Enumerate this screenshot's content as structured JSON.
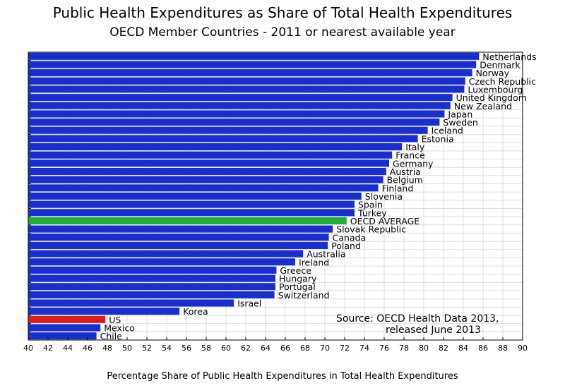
{
  "chart_data": {
    "type": "bar",
    "orientation": "horizontal",
    "title": "Public Health Expenditures as Share of Total Health Expenditures",
    "subtitle": "OECD Member Countries - 2011 or nearest available year",
    "xlabel": "Percentage Share of Public Health Expenditures in Total Health Expenditures",
    "xlim": [
      40,
      90
    ],
    "xticks": [
      40,
      42,
      44,
      46,
      48,
      50,
      52,
      54,
      56,
      58,
      60,
      62,
      64,
      66,
      68,
      70,
      72,
      74,
      76,
      78,
      80,
      82,
      84,
      86,
      88,
      90
    ],
    "grid": true,
    "colors": {
      "default": "#1a2fc8",
      "average": "#22aa3a",
      "us": "#d42020",
      "grid": "#dddddd"
    },
    "categories": [
      "Netherlands",
      "Denmark",
      "Norway",
      "Czech Republic",
      "Luxembourg",
      "United Kingdom",
      "New Zealand",
      "Japan",
      "Sweden",
      "Iceland",
      "Estonia",
      "Italy",
      "France",
      "Germany",
      "Austria",
      "Belgium",
      "Finland",
      "Slovenia",
      "Spain",
      "Turkey",
      "OECD AVERAGE",
      "Slovak Republic",
      "Canada",
      "Poland",
      "Australia",
      "Ireland",
      "Greece",
      "Hungary",
      "Portugal",
      "Switzerland",
      "Israel",
      "Korea",
      "US",
      "Mexico",
      "Chile"
    ],
    "values": [
      85.6,
      85.3,
      84.9,
      84.2,
      84.1,
      82.9,
      82.7,
      82.1,
      81.6,
      80.4,
      79.4,
      77.8,
      76.8,
      76.5,
      76.2,
      75.9,
      75.4,
      73.7,
      73.0,
      73.0,
      72.2,
      70.8,
      70.4,
      70.3,
      67.8,
      67.0,
      65.1,
      65.0,
      65.0,
      64.9,
      60.8,
      55.3,
      47.8,
      47.3,
      46.9
    ],
    "highlight": {
      "OECD AVERAGE": "average",
      "US": "us"
    }
  },
  "note": {
    "line1": "Source:  OECD Health Data 2013,",
    "line2": "released June 2013"
  }
}
